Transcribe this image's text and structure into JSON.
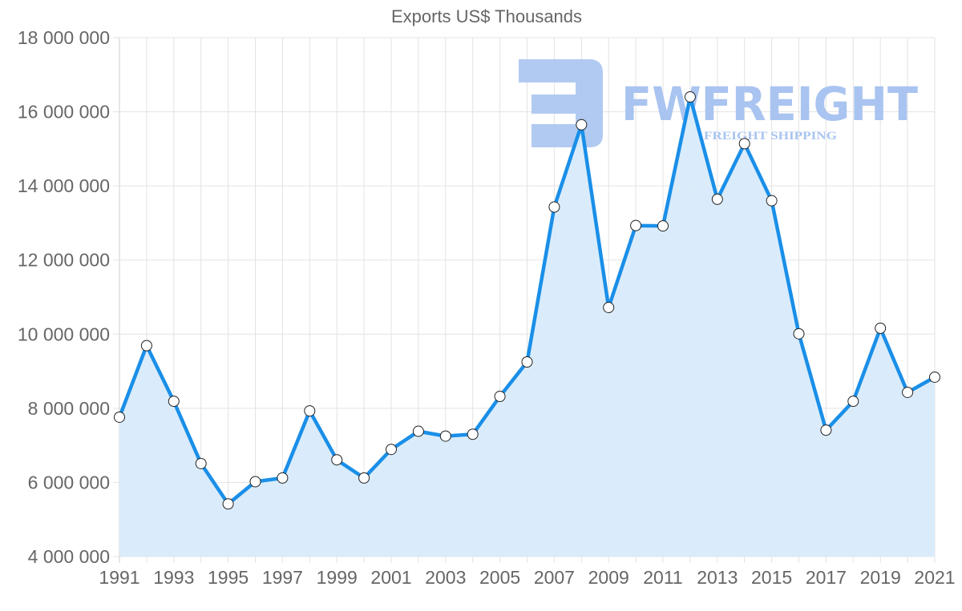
{
  "chart_data": {
    "type": "line",
    "title": "Exports US$ Thousands",
    "xlabel": "",
    "ylabel": "",
    "x": [
      1991,
      1992,
      1993,
      1994,
      1995,
      1996,
      1997,
      1998,
      1999,
      2000,
      2001,
      2002,
      2003,
      2004,
      2005,
      2006,
      2007,
      2008,
      2009,
      2010,
      2011,
      2012,
      2013,
      2014,
      2015,
      2016,
      2017,
      2018,
      2019,
      2020,
      2021
    ],
    "x_tick_labels": [
      "1991",
      "1993",
      "1995",
      "1997",
      "1999",
      "2001",
      "2003",
      "2005",
      "2007",
      "2009",
      "2011",
      "2013",
      "2015",
      "2017",
      "2019",
      "2021"
    ],
    "y_tick_labels": [
      "4 000 000",
      "6 000 000",
      "8 000 000",
      "10 000 000",
      "12 000 000",
      "14 000 000",
      "16 000 000",
      "18 000 000"
    ],
    "ylim": [
      4000000,
      18000000
    ],
    "grid": true,
    "legend": "none",
    "series": [
      {
        "name": "Exports US$ Thousands",
        "color": "#1a8fe8",
        "fill": "#d8ebfb",
        "values": [
          7760000,
          9690000,
          8190000,
          6510000,
          5420000,
          6020000,
          6120000,
          7930000,
          6610000,
          6120000,
          6890000,
          7380000,
          7250000,
          7300000,
          8320000,
          9250000,
          13430000,
          15650000,
          10720000,
          12930000,
          12920000,
          16400000,
          13640000,
          15140000,
          13600000,
          10010000,
          7410000,
          8190000,
          10160000,
          8430000,
          8840000
        ]
      }
    ]
  },
  "watermark": {
    "brand": "FWFREIGHT",
    "tagline": "FREIGHT SHIPPING",
    "color": "#a9c4f0"
  },
  "colors": {
    "axis_text": "#666666",
    "grid": "#e3e3e3",
    "marker_fill": "#ffffff",
    "marker_stroke": "#222222"
  }
}
